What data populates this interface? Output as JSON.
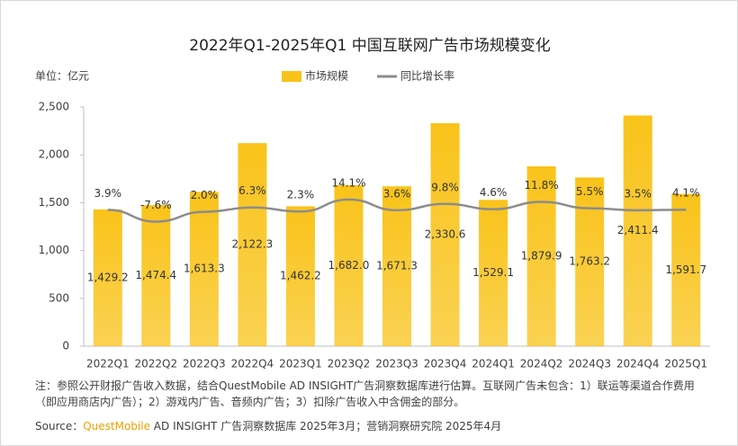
{
  "chart_data": {
    "type": "bar-line",
    "title": "2022年Q1-2025年Q1 中国互联网广告市场规模变化",
    "unit_label": "单位：亿元",
    "categories": [
      "2022Q1",
      "2022Q2",
      "2022Q3",
      "2022Q4",
      "2023Q1",
      "2023Q2",
      "2023Q3",
      "2023Q4",
      "2024Q1",
      "2024Q2",
      "2024Q3",
      "2024Q4",
      "2025Q1"
    ],
    "series": [
      {
        "name": "市场规模",
        "color": "#F9C31A",
        "type": "bar",
        "values": [
          1429.2,
          1474.4,
          1613.3,
          2122.3,
          1462.2,
          1682.0,
          1671.3,
          2330.6,
          1529.1,
          1879.9,
          1763.2,
          2411.4,
          1591.7
        ],
        "value_labels": [
          "1,429.2",
          "1,474.4",
          "1,613.3",
          "2,122.3",
          "1,462.2",
          "1,682.0",
          "1,671.3",
          "2,330.6",
          "1,529.1",
          "1,879.9",
          "1,763.2",
          "2,411.4",
          "1,591.7"
        ]
      },
      {
        "name": "同比增长率",
        "color": "#8C8C8C",
        "type": "line",
        "axis": "y2",
        "values": [
          3.9,
          -7.6,
          2.0,
          6.3,
          2.3,
          14.1,
          3.6,
          9.8,
          4.6,
          11.8,
          5.5,
          3.5,
          4.1
        ],
        "value_labels": [
          "3.9%",
          "-7.6%",
          "2.0%",
          "6.3%",
          "2.3%",
          "14.1%",
          "3.6%",
          "9.8%",
          "4.6%",
          "11.8%",
          "5.5%",
          "3.5%",
          "4.1%"
        ]
      }
    ],
    "ylim": [
      0,
      2500
    ],
    "yticks": [
      0,
      500,
      {
        "value": 1000,
        "label": "1,000"
      },
      {
        "value": 1500,
        "label": "1,500"
      },
      {
        "value": 2000,
        "label": "2,000"
      },
      {
        "value": 2500,
        "label": "2,500"
      }
    ],
    "y2lim": [
      -130,
      105
    ],
    "note": "注：参照公开财报广告收入数据，结合QuestMobile AD INSIGHT广告洞察数据库进行估算。互联网广告未包含：1）联运等渠道合作费用（即应用商店内广告）；2）游戏内广告、音频内广告；3）扣除广告收入中含佣金的部分。",
    "source_label": "Source：",
    "source_brand": "QuestMobile",
    "source_text": " AD INSIGHT 广告洞察数据库 2025年3月；营销洞察研究院 2025年4月"
  }
}
